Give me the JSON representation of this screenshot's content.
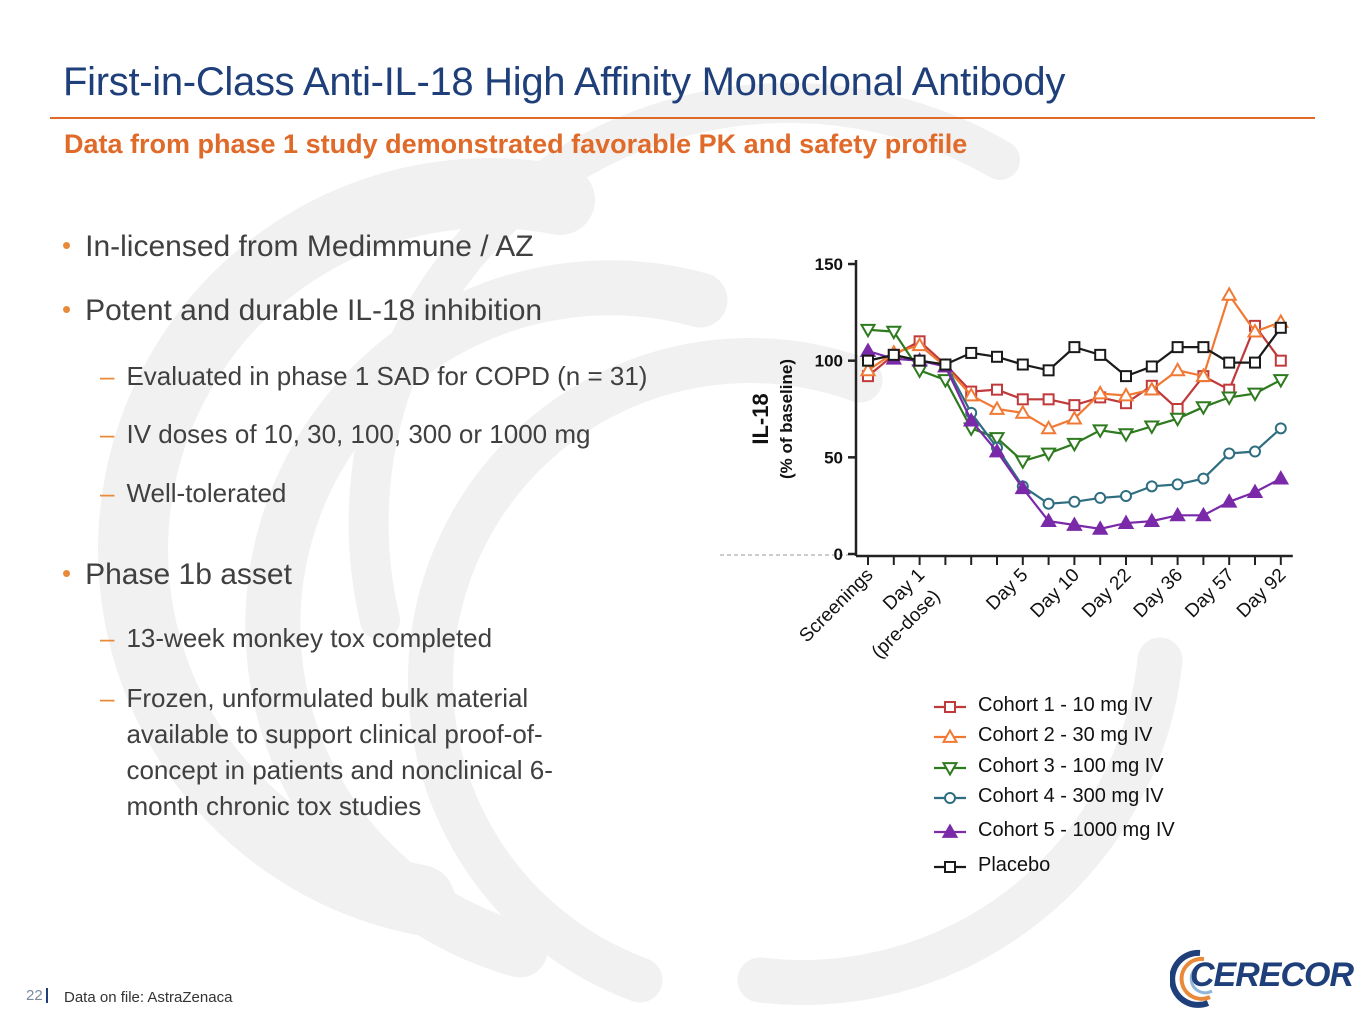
{
  "title": "First-in-Class Anti-IL-18 High Affinity Monoclonal Antibody",
  "subtitle": "Data from phase 1 study demonstrated favorable PK and safety profile",
  "bullets": [
    {
      "text": "In-licensed from Medimmune / AZ",
      "subs": []
    },
    {
      "text": "Potent and durable IL-18 inhibition",
      "subs": [
        "Evaluated in phase 1 SAD for COPD (n = 31)",
        "IV doses of 10, 30, 100, 300 or 1000 mg",
        "Well-tolerated"
      ]
    },
    {
      "text": "Phase 1b asset",
      "subs": [
        "13-week monkey tox completed",
        "Frozen, unformulated bulk material available to support clinical proof-of-concept in patients and nonclinical 6-month chronic tox studies"
      ]
    }
  ],
  "colors": {
    "title": "#1f3f7a",
    "accent": "#e06a2a",
    "cohort1": "#c0393b",
    "cohort2": "#f07a35",
    "cohort3": "#2e7a1e",
    "cohort4": "#2f6e80",
    "cohort5": "#7a2aa8",
    "placebo": "#1a1a1a"
  },
  "chart_data": {
    "type": "line",
    "ylabel": "IL-18",
    "ylabel_sub": "(% of baseline)",
    "ylim": [
      0,
      150
    ],
    "yticks": [
      0,
      50,
      100,
      150
    ],
    "x_tick_labels": [
      {
        "label": "Screenings",
        "index": 0
      },
      {
        "label": "Day 1\n(pre-dose)",
        "index": 2
      },
      {
        "label": "Day 5",
        "index": 6
      },
      {
        "label": "Day 10",
        "index": 8
      },
      {
        "label": "Day 22",
        "index": 10
      },
      {
        "label": "Day 36",
        "index": 12
      },
      {
        "label": "Day 57",
        "index": 14
      },
      {
        "label": "Day 92",
        "index": 16
      }
    ],
    "n_points": 17,
    "series": [
      {
        "name": "Cohort 1 - 10 mg IV",
        "marker": "square-open",
        "color": "#c0393b",
        "values": [
          92,
          103,
          110,
          98,
          84,
          85,
          80,
          80,
          77,
          81,
          78,
          87,
          75,
          92,
          85,
          118,
          100
        ]
      },
      {
        "name": "Cohort 2 - 30 mg IV",
        "marker": "triangle-up-open",
        "color": "#f07a35",
        "values": [
          95,
          104,
          108,
          97,
          82,
          75,
          73,
          65,
          70,
          83,
          82,
          85,
          95,
          92,
          134,
          115,
          120
        ]
      },
      {
        "name": "Cohort 3 - 100 mg IV",
        "marker": "triangle-down-open",
        "color": "#2e7a1e",
        "values": [
          116,
          115,
          95,
          90,
          65,
          60,
          48,
          52,
          57,
          64,
          62,
          66,
          70,
          76,
          81,
          83,
          90
        ]
      },
      {
        "name": "Cohort 4 - 300 mg IV",
        "marker": "circle-open",
        "color": "#2f6e80",
        "values": [
          100,
          103,
          100,
          98,
          73,
          55,
          35,
          26,
          27,
          29,
          30,
          35,
          36,
          39,
          52,
          53,
          65
        ]
      },
      {
        "name": "Cohort 5 - 1000 mg IV",
        "marker": "triangle-up-filled",
        "color": "#7a2aa8",
        "values": [
          105,
          101,
          100,
          97,
          69,
          53,
          34,
          17,
          15,
          13,
          16,
          17,
          20,
          20,
          27,
          32,
          39
        ]
      },
      {
        "name": "Placebo",
        "marker": "square-open",
        "color": "#1a1a1a",
        "values": [
          100,
          103,
          100,
          98,
          104,
          102,
          98,
          95,
          107,
          103,
          92,
          97,
          107,
          107,
          99,
          99,
          117
        ]
      }
    ]
  },
  "footer": {
    "page_number": "22",
    "source": "Data on file: AstraZenaca"
  },
  "logo": {
    "text": "CERECOR"
  }
}
